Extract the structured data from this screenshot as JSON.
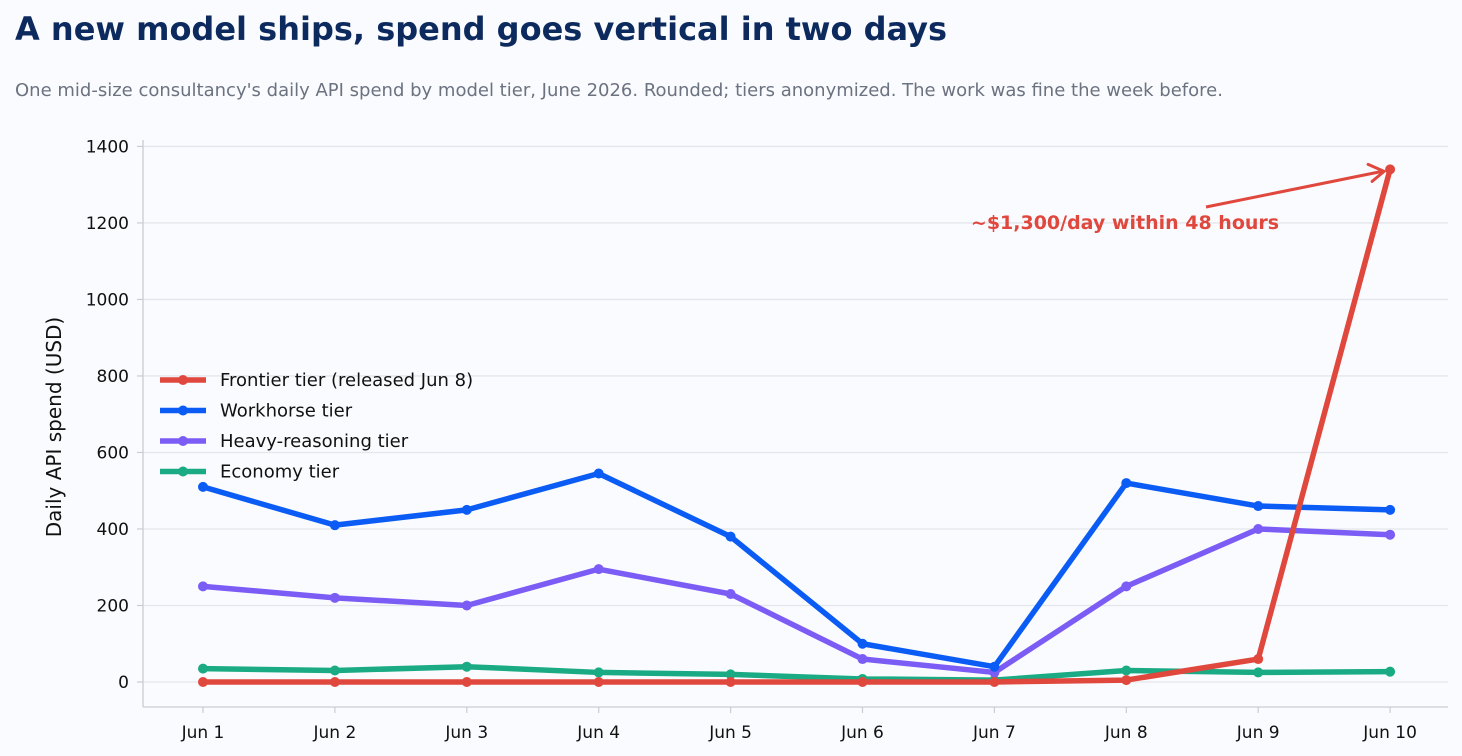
{
  "title": "A new model ships, spend goes vertical in two days",
  "subtitle": "One mid-size consultancy's daily API spend by model tier, June 2026. Rounded; tiers anonymized. The work was fine the week before.",
  "chart_data": {
    "type": "line",
    "x": [
      "Jun 1",
      "Jun 2",
      "Jun 3",
      "Jun 4",
      "Jun 5",
      "Jun 6",
      "Jun 7",
      "Jun 8",
      "Jun 9",
      "Jun 10"
    ],
    "ylabel": "Daily API spend (USD)",
    "xlabel": "",
    "ylim": [
      -65,
      1410
    ],
    "yticks": [
      0,
      200,
      400,
      600,
      800,
      1000,
      1200,
      1400
    ],
    "grid": "horizontal",
    "legend_position": "center-left",
    "series": [
      {
        "name": "Frontier tier (released Jun 8)",
        "color": "#e0483e",
        "values": [
          0,
          0,
          0,
          0,
          0,
          0,
          0,
          5,
          60,
          1340
        ]
      },
      {
        "name": "Workhorse tier",
        "color": "#0b5cf5",
        "values": [
          510,
          410,
          450,
          545,
          380,
          100,
          40,
          520,
          460,
          450
        ]
      },
      {
        "name": "Heavy-reasoning tier",
        "color": "#7b5cf5",
        "values": [
          250,
          220,
          200,
          295,
          230,
          60,
          25,
          250,
          400,
          385
        ]
      },
      {
        "name": "Economy tier",
        "color": "#1aab84",
        "values": [
          35,
          30,
          40,
          25,
          20,
          8,
          5,
          30,
          25,
          27
        ]
      }
    ],
    "annotation": {
      "text": "~$1,300/day within 48 hours",
      "color": "#e0483e",
      "target_x": "Jun 10",
      "target_y": 1340,
      "text_x": "Jun 8",
      "text_y": 1200
    }
  }
}
